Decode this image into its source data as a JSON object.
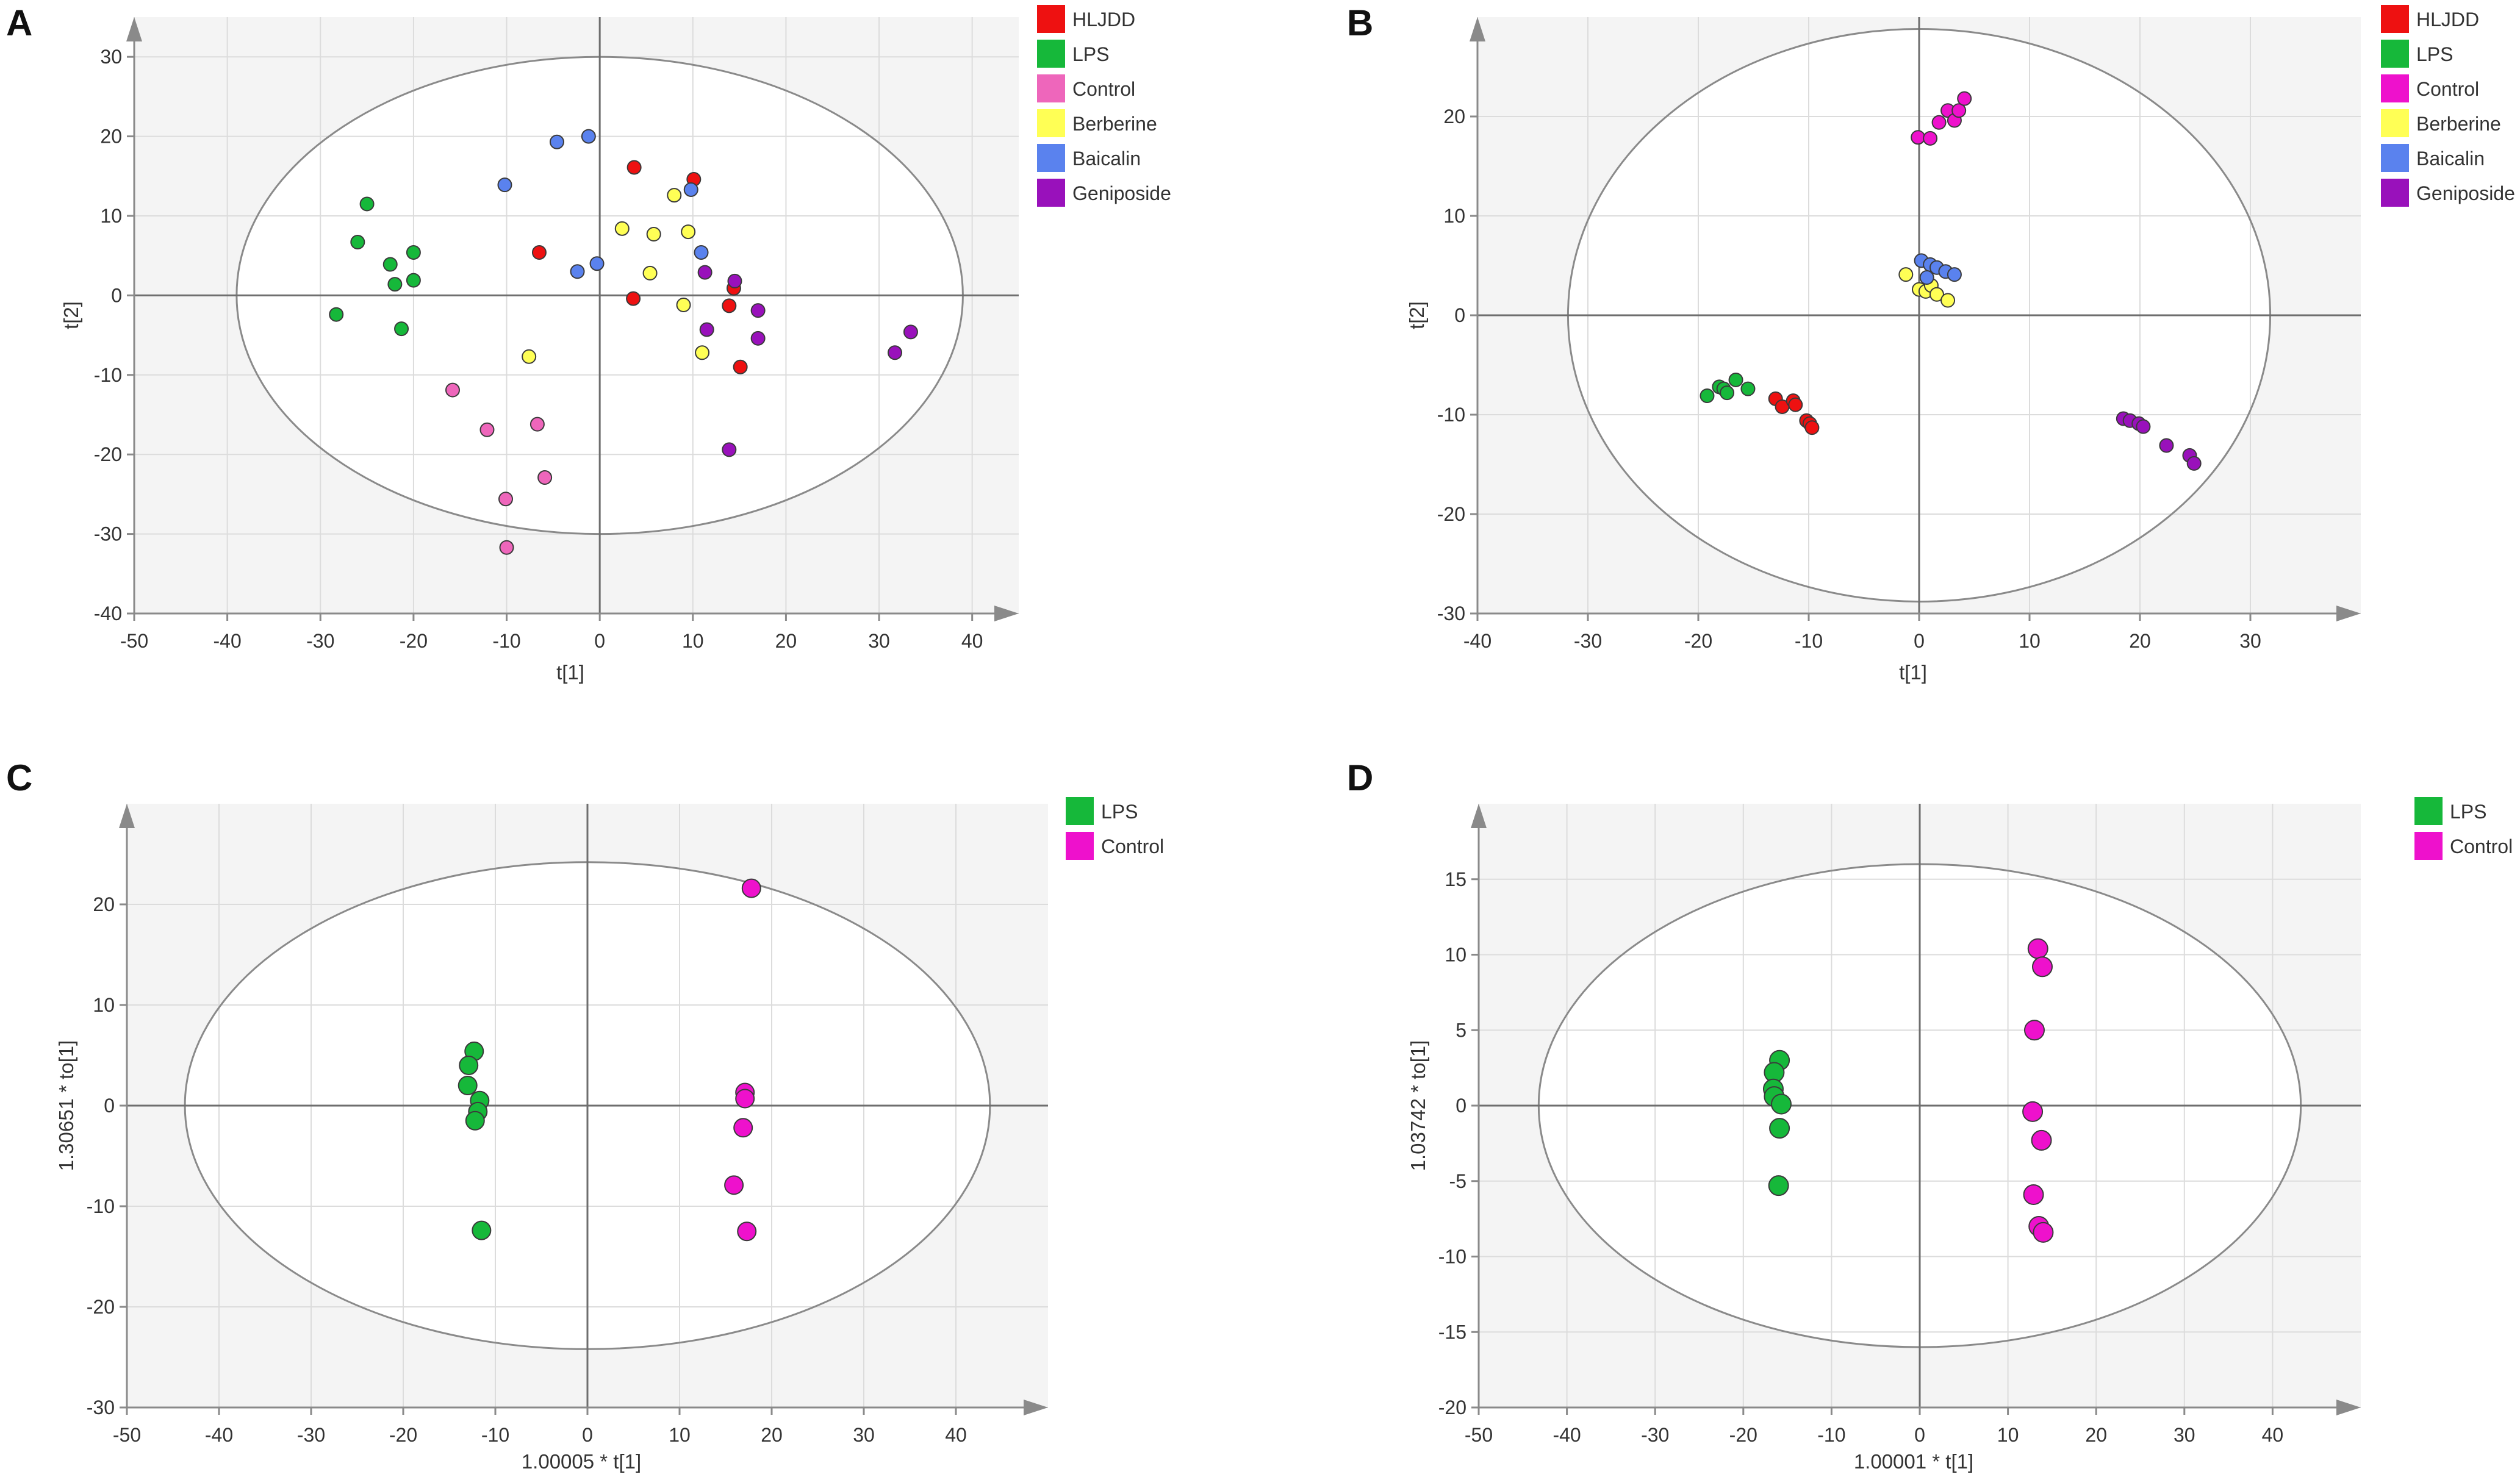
{
  "colors": {
    "HLJDD": "#ee1111",
    "LPS": "#16b83a",
    "Control_A": "#ee66bb",
    "Control": "#ee11cc",
    "Berberine": "#ffff55",
    "Baicalin": "#5a82ee",
    "Geniposide": "#9911bb"
  },
  "chart_data": [
    {
      "panel_label": "A",
      "type": "scatter",
      "xlabel": "t[1]",
      "ylabel": "t[2]",
      "xlim": [
        -50,
        45
      ],
      "ylim": [
        -40,
        35
      ],
      "xticks": [
        -50,
        -40,
        -30,
        -20,
        -10,
        0,
        10,
        20,
        30,
        40
      ],
      "yticks": [
        -40,
        -30,
        -20,
        -10,
        0,
        10,
        20,
        30
      ],
      "grid": true,
      "legend": "top-right",
      "ellipse": {
        "rx": 39,
        "ry": 30
      },
      "series": [
        {
          "name": "HLJDD",
          "color_key": "HLJDD",
          "points": [
            [
              3.7,
              16.1
            ],
            [
              10.1,
              14.6
            ],
            [
              -6.5,
              5.4
            ],
            [
              3.6,
              -0.4
            ],
            [
              14.4,
              0.9
            ],
            [
              13.9,
              -1.3
            ],
            [
              15.1,
              -9.0
            ]
          ]
        },
        {
          "name": "LPS",
          "color_key": "LPS",
          "points": [
            [
              -25.0,
              11.5
            ],
            [
              -26.0,
              6.7
            ],
            [
              -20.0,
              5.4
            ],
            [
              -22.5,
              3.9
            ],
            [
              -20.0,
              1.9
            ],
            [
              -22.0,
              1.4
            ],
            [
              -21.3,
              -4.2
            ],
            [
              -28.3,
              -2.4
            ]
          ]
        },
        {
          "name": "Control",
          "color_key": "Control_A",
          "points": [
            [
              -15.8,
              -11.9
            ],
            [
              -6.7,
              -16.2
            ],
            [
              -12.1,
              -16.9
            ],
            [
              -5.9,
              -22.9
            ],
            [
              -10.1,
              -25.6
            ],
            [
              -10.0,
              -31.7
            ]
          ]
        },
        {
          "name": "Berberine",
          "color_key": "Berberine",
          "points": [
            [
              8.0,
              12.6
            ],
            [
              2.4,
              8.4
            ],
            [
              5.8,
              7.7
            ],
            [
              9.5,
              8.0
            ],
            [
              5.4,
              2.8
            ],
            [
              9.0,
              -1.2
            ],
            [
              11.0,
              -7.2
            ],
            [
              -7.6,
              -7.7
            ]
          ]
        },
        {
          "name": "Baicalin",
          "color_key": "Baicalin",
          "points": [
            [
              -1.2,
              20.0
            ],
            [
              -4.6,
              19.3
            ],
            [
              9.8,
              13.3
            ],
            [
              -10.2,
              13.9
            ],
            [
              10.9,
              5.4
            ],
            [
              -0.3,
              4.0
            ],
            [
              -2.4,
              3.0
            ]
          ]
        },
        {
          "name": "Geniposide",
          "color_key": "Geniposide",
          "points": [
            [
              11.3,
              2.9
            ],
            [
              14.5,
              1.8
            ],
            [
              17.0,
              -1.9
            ],
            [
              11.5,
              -4.3
            ],
            [
              17.0,
              -5.4
            ],
            [
              33.4,
              -4.6
            ],
            [
              31.7,
              -7.2
            ],
            [
              13.9,
              -19.4
            ]
          ]
        }
      ]
    },
    {
      "panel_label": "B",
      "type": "scatter",
      "xlabel": "t[1]",
      "ylabel": "t[2]",
      "xlim": [
        -40,
        40
      ],
      "ylim": [
        -30,
        30
      ],
      "xticks": [
        -40,
        -30,
        -20,
        -10,
        0,
        10,
        20,
        30
      ],
      "yticks": [
        -30,
        -20,
        -10,
        0,
        10,
        20
      ],
      "grid": true,
      "legend": "top-right",
      "ellipse": {
        "rx": 31.8,
        "ry": 28.8
      },
      "series": [
        {
          "name": "HLJDD",
          "color_key": "HLJDD",
          "points": [
            [
              -13.0,
              -8.4
            ],
            [
              -12.4,
              -9.2
            ],
            [
              -11.4,
              -8.6
            ],
            [
              -11.2,
              -9.0
            ],
            [
              -10.2,
              -10.6
            ],
            [
              -9.9,
              -10.9
            ],
            [
              -9.7,
              -11.3
            ]
          ]
        },
        {
          "name": "LPS",
          "color_key": "LPS",
          "points": [
            [
              -19.2,
              -8.1
            ],
            [
              -18.1,
              -7.2
            ],
            [
              -17.7,
              -7.4
            ],
            [
              -17.4,
              -7.8
            ],
            [
              -16.6,
              -6.5
            ],
            [
              -15.5,
              -7.4
            ]
          ]
        },
        {
          "name": "Control",
          "color_key": "Control",
          "points": [
            [
              -0.1,
              17.9
            ],
            [
              1.0,
              17.8
            ],
            [
              1.8,
              19.4
            ],
            [
              2.6,
              20.6
            ],
            [
              3.2,
              19.6
            ],
            [
              3.6,
              20.6
            ],
            [
              4.1,
              21.8
            ]
          ]
        },
        {
          "name": "Berberine",
          "color_key": "Berberine",
          "points": [
            [
              -1.2,
              4.1
            ],
            [
              0.0,
              2.6
            ],
            [
              0.6,
              2.4
            ],
            [
              1.1,
              3.0
            ],
            [
              1.6,
              2.1
            ],
            [
              2.6,
              1.5
            ]
          ]
        },
        {
          "name": "Baicalin",
          "color_key": "Baicalin",
          "points": [
            [
              0.2,
              5.5
            ],
            [
              1.0,
              5.1
            ],
            [
              1.6,
              4.8
            ],
            [
              2.4,
              4.4
            ],
            [
              3.2,
              4.1
            ],
            [
              0.7,
              3.8
            ]
          ]
        },
        {
          "name": "Geniposide",
          "color_key": "Geniposide",
          "points": [
            [
              18.5,
              -10.4
            ],
            [
              19.1,
              -10.6
            ],
            [
              19.9,
              -10.9
            ],
            [
              20.3,
              -11.2
            ],
            [
              22.4,
              -13.1
            ],
            [
              24.5,
              -14.1
            ],
            [
              24.9,
              -14.9
            ]
          ]
        }
      ]
    },
    {
      "panel_label": "C",
      "type": "scatter",
      "xlabel": "1.00005 * t[1]",
      "ylabel": "1.30651 * to[1]",
      "xlim": [
        -50,
        50
      ],
      "ylim": [
        -30,
        30
      ],
      "xticks": [
        -50,
        -40,
        -30,
        -20,
        -10,
        0,
        10,
        20,
        30,
        40
      ],
      "yticks": [
        -30,
        -20,
        -10,
        0,
        10,
        20
      ],
      "grid": true,
      "legend": "top-right",
      "ellipse": {
        "rx": 43.7,
        "ry": 24.2
      },
      "series": [
        {
          "name": "LPS",
          "color_key": "LPS",
          "points": [
            [
              -12.3,
              5.4
            ],
            [
              -12.9,
              4.0
            ],
            [
              -13.0,
              2.0
            ],
            [
              -11.7,
              0.5
            ],
            [
              -11.9,
              -0.6
            ],
            [
              -12.2,
              -1.5
            ],
            [
              -11.5,
              -12.4
            ]
          ]
        },
        {
          "name": "Control",
          "color_key": "Control",
          "points": [
            [
              17.8,
              21.6
            ],
            [
              17.1,
              1.3
            ],
            [
              17.1,
              0.7
            ],
            [
              16.9,
              -2.2
            ],
            [
              15.9,
              -7.9
            ],
            [
              17.3,
              -12.5
            ]
          ]
        }
      ]
    },
    {
      "panel_label": "D",
      "type": "scatter",
      "xlabel": "1.00001 * t[1]",
      "ylabel": "1.03742 * to[1]",
      "xlim": [
        -50,
        50
      ],
      "ylim": [
        -20,
        20
      ],
      "xticks": [
        -50,
        -40,
        -30,
        -20,
        -10,
        0,
        10,
        20,
        30,
        40
      ],
      "yticks": [
        -20,
        -15,
        -10,
        -5,
        0,
        5,
        10,
        15
      ],
      "grid": true,
      "legend": "top-right",
      "ellipse": {
        "rx": 43.2,
        "ry": 16.0
      },
      "series": [
        {
          "name": "LPS",
          "color_key": "LPS",
          "points": [
            [
              -15.9,
              3.0
            ],
            [
              -16.5,
              2.2
            ],
            [
              -16.6,
              1.1
            ],
            [
              -16.5,
              0.6
            ],
            [
              -15.7,
              0.1
            ],
            [
              -15.9,
              -1.5
            ],
            [
              -16.0,
              -5.3
            ]
          ]
        },
        {
          "name": "Control",
          "color_key": "Control",
          "points": [
            [
              13.4,
              10.4
            ],
            [
              13.9,
              9.2
            ],
            [
              13.0,
              5.0
            ],
            [
              12.8,
              -0.4
            ],
            [
              13.8,
              -2.3
            ],
            [
              12.9,
              -5.9
            ],
            [
              13.5,
              -8.0
            ],
            [
              14.0,
              -8.4
            ]
          ]
        }
      ]
    }
  ]
}
